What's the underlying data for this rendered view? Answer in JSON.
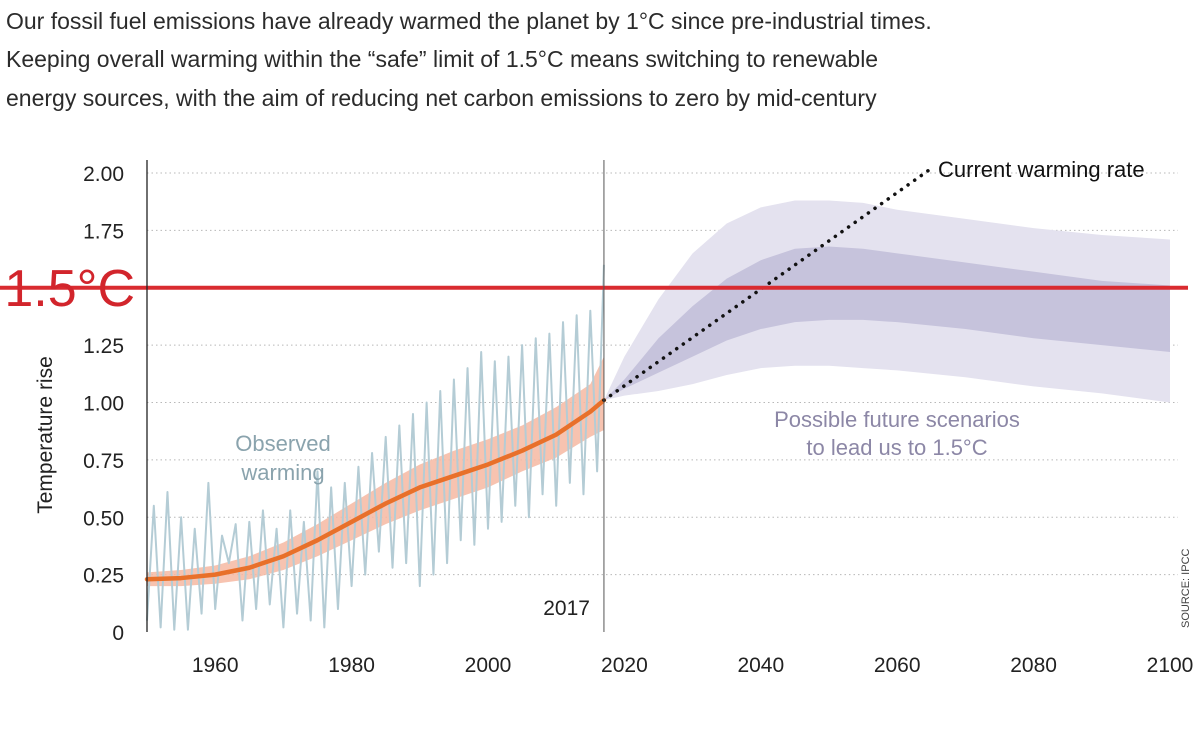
{
  "intro": {
    "lines": [
      "Our fossil fuel emissions have already warmed the planet by 1°C since pre-industrial times.",
      "Keeping overall warming within the “safe” limit of 1.5°C means switching to renewable",
      "energy sources, with the aim of reducing net carbon emissions to zero by mid-century"
    ]
  },
  "colors": {
    "limit_line": "#d92b30",
    "trend_line": "#e8702a",
    "trend_band": "#f6b8a2",
    "observed": "#b4ccd5",
    "scenario_outer": "#e4e2ef",
    "scenario_inner": "#c6c3dc",
    "dotted": "#111111",
    "observed_label": "#8aa3ad",
    "scenario_label": "#8c87a6"
  },
  "chart_data": {
    "type": "line",
    "title": "",
    "xlabel": "",
    "ylabel": "Temperature rise",
    "xlim": [
      1950,
      2100
    ],
    "ylim": [
      0,
      2.0
    ],
    "x_ticks": [
      1960,
      1980,
      2000,
      2020,
      2040,
      2060,
      2080,
      2100
    ],
    "y_ticks": [
      {
        "value": 0,
        "label": "0"
      },
      {
        "value": 0.25,
        "label": "0.25"
      },
      {
        "value": 0.5,
        "label": "0.50"
      },
      {
        "value": 0.75,
        "label": "0.75"
      },
      {
        "value": 1.0,
        "label": "1.00"
      },
      {
        "value": 1.25,
        "label": "1.25"
      },
      {
        "value": 1.5,
        "label": "1.5°C"
      },
      {
        "value": 1.75,
        "label": "1.75"
      },
      {
        "value": 2.0,
        "label": "2.00"
      }
    ],
    "grid": true,
    "limit": {
      "value": 1.5,
      "label": "1.5°C"
    },
    "marker": {
      "year": 2017,
      "label": "2017"
    },
    "series": [
      {
        "name": "Observed warming",
        "x": [
          1950,
          1951,
          1952,
          1953,
          1954,
          1955,
          1956,
          1957,
          1958,
          1959,
          1960,
          1961,
          1962,
          1963,
          1964,
          1965,
          1966,
          1967,
          1968,
          1969,
          1970,
          1971,
          1972,
          1973,
          1974,
          1975,
          1976,
          1977,
          1978,
          1979,
          1980,
          1981,
          1982,
          1983,
          1984,
          1985,
          1986,
          1987,
          1988,
          1989,
          1990,
          1991,
          1992,
          1993,
          1994,
          1995,
          1996,
          1997,
          1998,
          1999,
          2000,
          2001,
          2002,
          2003,
          2004,
          2005,
          2006,
          2007,
          2008,
          2009,
          2010,
          2011,
          2012,
          2013,
          2014,
          2015,
          2016,
          2017
        ],
        "values": [
          0.05,
          0.55,
          0.02,
          0.61,
          0.01,
          0.5,
          0.01,
          0.45,
          0.08,
          0.65,
          0.1,
          0.42,
          0.3,
          0.47,
          0.05,
          0.48,
          0.1,
          0.53,
          0.12,
          0.45,
          0.02,
          0.53,
          0.08,
          0.48,
          0.05,
          0.7,
          0.02,
          0.63,
          0.1,
          0.65,
          0.2,
          0.72,
          0.25,
          0.78,
          0.35,
          0.85,
          0.28,
          0.9,
          0.3,
          0.95,
          0.2,
          1.0,
          0.25,
          1.05,
          0.3,
          1.1,
          0.4,
          1.15,
          0.38,
          1.22,
          0.45,
          1.18,
          0.48,
          1.2,
          0.55,
          1.25,
          0.5,
          1.28,
          0.6,
          1.3,
          0.55,
          1.35,
          0.65,
          1.38,
          0.6,
          1.4,
          0.7,
          1.6
        ]
      },
      {
        "name": "Trend",
        "x": [
          1950,
          1955,
          1960,
          1965,
          1970,
          1975,
          1980,
          1985,
          1990,
          1995,
          2000,
          2005,
          2010,
          2015,
          2017
        ],
        "values": [
          0.23,
          0.235,
          0.25,
          0.28,
          0.33,
          0.4,
          0.48,
          0.56,
          0.63,
          0.68,
          0.73,
          0.79,
          0.86,
          0.96,
          1.01
        ],
        "lower": [
          0.2,
          0.2,
          0.21,
          0.23,
          0.27,
          0.33,
          0.4,
          0.47,
          0.53,
          0.58,
          0.63,
          0.7,
          0.76,
          0.85,
          0.88
        ],
        "upper": [
          0.26,
          0.27,
          0.29,
          0.33,
          0.39,
          0.47,
          0.56,
          0.65,
          0.73,
          0.79,
          0.84,
          0.9,
          0.98,
          1.08,
          1.2
        ]
      },
      {
        "name": "Possible future scenarios to lead us to 1.5°C (outer range)",
        "x": [
          2017,
          2020,
          2025,
          2030,
          2035,
          2040,
          2045,
          2050,
          2055,
          2060,
          2070,
          2080,
          2090,
          2100
        ],
        "lower": [
          1.01,
          1.03,
          1.05,
          1.08,
          1.12,
          1.15,
          1.16,
          1.16,
          1.15,
          1.14,
          1.11,
          1.07,
          1.04,
          1.0
        ],
        "upper": [
          1.01,
          1.2,
          1.45,
          1.65,
          1.78,
          1.85,
          1.88,
          1.88,
          1.87,
          1.84,
          1.8,
          1.76,
          1.73,
          1.71
        ]
      },
      {
        "name": "Possible future scenarios to lead us to 1.5°C (inner range)",
        "x": [
          2017,
          2020,
          2025,
          2030,
          2035,
          2040,
          2045,
          2050,
          2055,
          2060,
          2070,
          2080,
          2090,
          2100
        ],
        "lower": [
          1.01,
          1.06,
          1.13,
          1.2,
          1.27,
          1.32,
          1.35,
          1.36,
          1.36,
          1.35,
          1.32,
          1.28,
          1.25,
          1.22
        ],
        "upper": [
          1.01,
          1.1,
          1.28,
          1.42,
          1.54,
          1.62,
          1.67,
          1.68,
          1.67,
          1.65,
          1.61,
          1.57,
          1.53,
          1.51
        ]
      },
      {
        "name": "Current warming rate",
        "x": [
          2017,
          2065
        ],
        "values": [
          1.01,
          2.02
        ]
      }
    ],
    "annotations": {
      "observed": [
        "Observed",
        "warming"
      ],
      "scenarios": [
        "Possible future scenarios",
        "to lead us to 1.5°C"
      ],
      "current_rate": "Current warming rate",
      "source": "SOURCE: IPCC"
    }
  }
}
